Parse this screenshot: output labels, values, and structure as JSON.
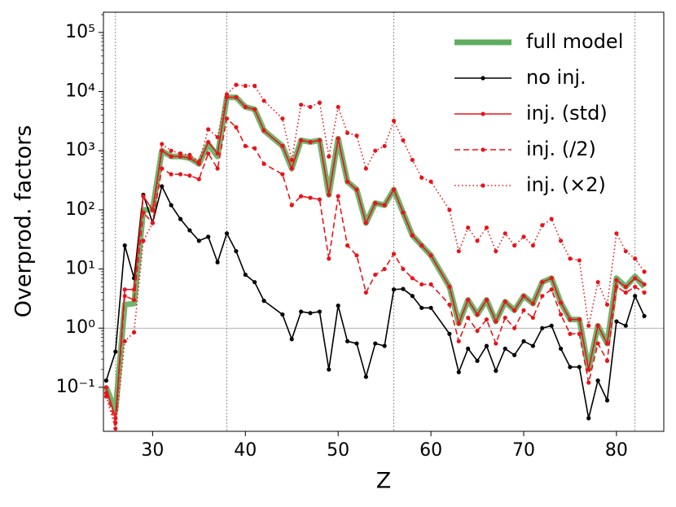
{
  "chart_data": {
    "type": "line",
    "xlabel": "Z",
    "ylabel": "Overprod. factors",
    "x": [
      25,
      26,
      27,
      28,
      29,
      30,
      31,
      32,
      33,
      34,
      35,
      36,
      37,
      38,
      39,
      40,
      41,
      42,
      44,
      45,
      46,
      47,
      48,
      49,
      50,
      51,
      52,
      53,
      54,
      55,
      56,
      57,
      58,
      59,
      60,
      62,
      63,
      64,
      65,
      66,
      67,
      68,
      69,
      70,
      71,
      72,
      73,
      74,
      75,
      76,
      77,
      78,
      79,
      80,
      81,
      82,
      83
    ],
    "series": [
      {
        "name": "full model",
        "color": "#5fae5f",
        "linestyle": "wide",
        "values": [
          0.1,
          0.04,
          2.5,
          2.6,
          100,
          100,
          1000,
          800,
          800,
          750,
          600,
          1300,
          800,
          8000,
          8000,
          5500,
          5000,
          2200,
          1200,
          500,
          1500,
          1400,
          1500,
          180,
          1600,
          300,
          220,
          60,
          130,
          120,
          220,
          90,
          37,
          25,
          17,
          5,
          1.2,
          3,
          1.7,
          3,
          1.3,
          2.8,
          2.0,
          3.5,
          2.6,
          6,
          7,
          2.7,
          1.4,
          1.4,
          0.2,
          1.1,
          0.55,
          7,
          5,
          7.5,
          5
        ]
      },
      {
        "name": "no inj.",
        "color": "#000000",
        "linestyle": "solid",
        "values": [
          0.13,
          0.4,
          25,
          7,
          180,
          60,
          250,
          120,
          70,
          45,
          30,
          35,
          13,
          40,
          20,
          8,
          6,
          2.9,
          1.7,
          0.65,
          1.9,
          1.8,
          1.9,
          0.2,
          2.4,
          0.6,
          0.55,
          0.15,
          0.55,
          0.5,
          4.5,
          4.6,
          3.5,
          2.2,
          2.2,
          0.8,
          0.18,
          0.45,
          0.28,
          0.5,
          0.19,
          0.45,
          0.35,
          0.6,
          0.5,
          1.0,
          1.1,
          0.45,
          0.22,
          0.22,
          0.03,
          0.13,
          0.06,
          1.3,
          1.1,
          3.5,
          1.6
        ]
      },
      {
        "name": "inj. (std)",
        "color": "#e8141a",
        "linestyle": "solid",
        "values": [
          0.1,
          0.03,
          4.5,
          4.5,
          170,
          100,
          1000,
          800,
          800,
          750,
          600,
          1400,
          900,
          8000,
          8000,
          5500,
          5000,
          2200,
          1200,
          500,
          1500,
          1400,
          1500,
          180,
          1600,
          300,
          220,
          60,
          130,
          120,
          220,
          90,
          37,
          25,
          17,
          5,
          1.2,
          3,
          1.7,
          3,
          1.3,
          2.8,
          2.0,
          3.5,
          2.6,
          6,
          7,
          2.7,
          1.4,
          1.4,
          0.2,
          1.1,
          0.55,
          6.5,
          5,
          7,
          5.5
        ]
      },
      {
        "name": "inj. (/2)",
        "color": "#e8141a",
        "linestyle": "dashed",
        "values": [
          0.08,
          0.025,
          3.5,
          3,
          90,
          60,
          500,
          400,
          400,
          380,
          330,
          900,
          500,
          3500,
          2500,
          1200,
          1100,
          600,
          400,
          120,
          170,
          160,
          150,
          15,
          170,
          25,
          17,
          4,
          8,
          10,
          18,
          10,
          7,
          5.5,
          5.5,
          2.5,
          0.6,
          1.5,
          0.9,
          1.4,
          0.55,
          1.5,
          1,
          2,
          1.5,
          3.5,
          4.5,
          1.7,
          0.8,
          0.8,
          0.12,
          0.55,
          0.28,
          5,
          4,
          5,
          4
        ]
      },
      {
        "name": "inj. (×2)",
        "color": "#e8141a",
        "linestyle": "dotted",
        "values": [
          0.07,
          0.02,
          0.6,
          0.85,
          30,
          60,
          1300,
          1000,
          900,
          850,
          650,
          2300,
          1700,
          9000,
          13000,
          12500,
          12500,
          7000,
          3500,
          700,
          6000,
          5500,
          6500,
          800,
          5500,
          2000,
          1800,
          500,
          1000,
          1200,
          3200,
          1500,
          700,
          350,
          300,
          100,
          20,
          50,
          30,
          50,
          20,
          40,
          25,
          35,
          25,
          55,
          70,
          30,
          15,
          14,
          1.1,
          6,
          2.5,
          40,
          20,
          15,
          9
        ]
      }
    ],
    "xlim": [
      24.7,
      85.1
    ],
    "xticks": [
      30,
      40,
      50,
      60,
      70,
      80
    ],
    "ylim": [
      0.018,
      220000
    ],
    "log_y": true,
    "yticks": [
      {
        "value": 0.1,
        "label": "10⁻¹"
      },
      {
        "value": 1,
        "label": "10⁰"
      },
      {
        "value": 10,
        "label": "10¹"
      },
      {
        "value": 100,
        "label": "10²"
      },
      {
        "value": 1000,
        "label": "10³"
      },
      {
        "value": 10000,
        "label": "10⁴"
      },
      {
        "value": 100000,
        "label": "10⁵"
      }
    ],
    "vlines": [
      26,
      38,
      56,
      82
    ],
    "hlines": [
      1
    ],
    "legend": "upper right"
  }
}
